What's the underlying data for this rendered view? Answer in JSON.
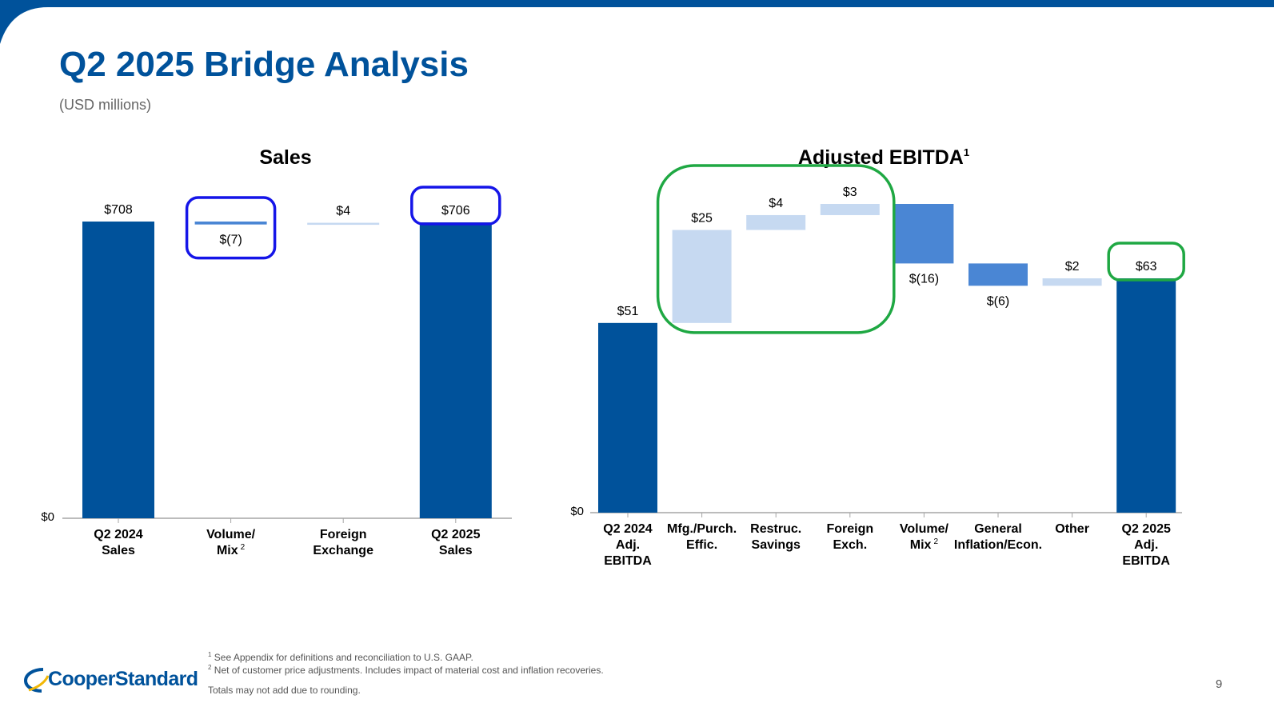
{
  "page": {
    "title": "Q2 2025 Bridge Analysis",
    "subtitle": "(USD millions)",
    "page_number": "9",
    "logo_text": "CooperStandard",
    "footnotes": [
      "See Appendix for definitions and reconciliation to U.S. GAAP.",
      "Net of customer price adjustments. Includes impact of material cost and inflation recoveries.",
      "Totals may not add due to rounding."
    ],
    "footnote_marks": [
      "1",
      "2"
    ]
  },
  "colors": {
    "brand_blue": "#00529b",
    "total_bar": "#00529b",
    "positive_bar": "#c6d9f1",
    "negative_bar": "#4a86d4",
    "highlight_blue": "#1515e8",
    "highlight_green": "#1fa843"
  },
  "chart_data": [
    {
      "type": "bar",
      "subtype": "waterfall",
      "title": "Sales",
      "title_sup": "",
      "y_zero_label": "$0",
      "categories": [
        [
          "Q2 2024",
          "Sales"
        ],
        [
          "Volume/",
          "Mix"
        ],
        [
          "Foreign",
          "Exchange"
        ],
        [
          "Q2 2025",
          "Sales"
        ]
      ],
      "category_sup": [
        "",
        "2",
        "",
        ""
      ],
      "values": [
        708,
        -7,
        4,
        706
      ],
      "kinds": [
        "total",
        "negative",
        "positive",
        "total"
      ],
      "data_labels": [
        "$708",
        "$(7)",
        "$4",
        "$706"
      ],
      "ylim": [
        0,
        708
      ],
      "highlights": [
        {
          "bars": [
            1
          ],
          "color": "blue"
        },
        {
          "bars": [
            3
          ],
          "color": "blue"
        }
      ]
    },
    {
      "type": "bar",
      "subtype": "waterfall",
      "title": "Adjusted EBITDA",
      "title_sup": "1",
      "y_zero_label": "$0",
      "categories": [
        [
          "Q2 2024",
          "Adj.",
          "EBITDA"
        ],
        [
          "Mfg./Purch.",
          "Effic."
        ],
        [
          "Restruc.",
          "Savings"
        ],
        [
          "Foreign",
          "Exch."
        ],
        [
          "Volume/",
          "Mix"
        ],
        [
          "General",
          "Inflation/Econ."
        ],
        [
          "Other"
        ],
        [
          "Q2 2025",
          "Adj.",
          "EBITDA"
        ]
      ],
      "category_sup": [
        "",
        "",
        "",
        "",
        "2",
        "",
        "",
        ""
      ],
      "values": [
        51,
        25,
        4,
        3,
        -16,
        -6,
        2,
        63
      ],
      "kinds": [
        "total",
        "positive",
        "positive",
        "positive",
        "negative",
        "negative",
        "positive",
        "total"
      ],
      "data_labels": [
        "$51",
        "$25",
        "$4",
        "$3",
        "$(16)",
        "$(6)",
        "$2",
        "$63"
      ],
      "ylim": [
        0,
        83
      ],
      "highlights": [
        {
          "bars": [
            1,
            2,
            3
          ],
          "color": "green"
        },
        {
          "bars": [
            7
          ],
          "color": "green"
        }
      ]
    }
  ]
}
